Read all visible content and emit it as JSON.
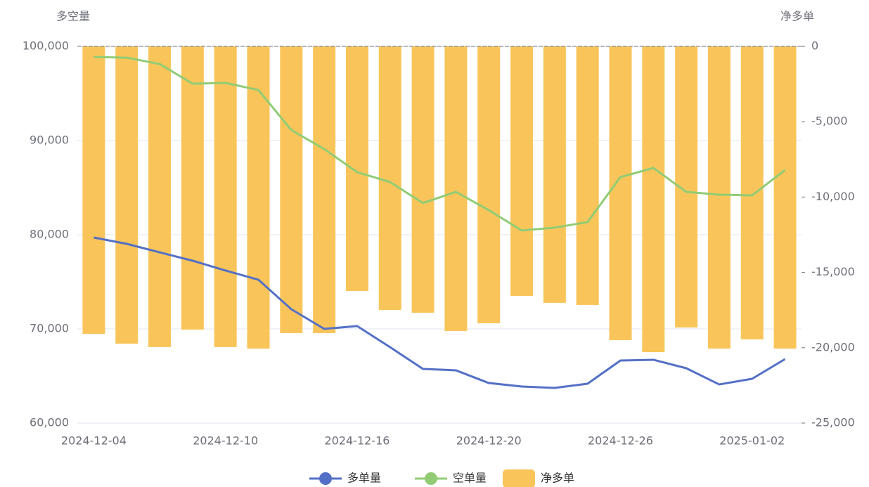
{
  "chart_data": {
    "type": "bar-line",
    "y_title": "多空量",
    "y2_title": "净多单",
    "categories": [
      "2024-12-04",
      null,
      null,
      null,
      "2024-12-10",
      null,
      null,
      null,
      "2024-12-16",
      null,
      null,
      null,
      "2024-12-20",
      null,
      null,
      null,
      "2024-12-26",
      null,
      null,
      null,
      "2025-01-02",
      null
    ],
    "ylim": [
      60000,
      100000
    ],
    "yticks": [
      {
        "value": 60000,
        "label": "60,000"
      },
      {
        "value": 70000,
        "label": "70,000"
      },
      {
        "value": 80000,
        "label": "80,000"
      },
      {
        "value": 90000,
        "label": "90,000"
      },
      {
        "value": 100000,
        "label": "100,000"
      }
    ],
    "y2lim": [
      -25000,
      0
    ],
    "y2ticks": [
      {
        "value": -25000,
        "label": "-25,000"
      },
      {
        "value": -20000,
        "label": "-20,000"
      },
      {
        "value": -15000,
        "label": "-15,000"
      },
      {
        "value": -10000,
        "label": "-10,000"
      },
      {
        "value": -5000,
        "label": "-5,000"
      },
      0
    ],
    "grid": true,
    "series": [
      {
        "name": "多单量",
        "type": "line",
        "color": "#5470c6",
        "values": [
          79700,
          79030,
          78130,
          77240,
          76200,
          75220,
          72090,
          70000,
          70300,
          68060,
          65750,
          65600,
          64250,
          63880,
          63730,
          64180,
          66640,
          66720,
          65820,
          64100,
          64700,
          66790
        ]
      },
      {
        "name": "空单量",
        "type": "line",
        "color": "#91cc75",
        "values": [
          98880,
          98800,
          98130,
          96040,
          96120,
          95370,
          91120,
          89100,
          86640,
          85600,
          83360,
          84550,
          82610,
          80450,
          80750,
          81340,
          86120,
          87090,
          84550,
          84250,
          84180,
          86870
        ]
      },
      {
        "name": "净多单",
        "type": "bar",
        "axis": "y2",
        "color": "#f9c55a",
        "values": [
          -19080,
          -19730,
          -19960,
          -18800,
          -19960,
          -20060,
          -19030,
          -19030,
          -16230,
          -17490,
          -17680,
          -18890,
          -18380,
          -16560,
          -17020,
          -17160,
          -19500,
          -20290,
          -18660,
          -20060,
          -19450,
          -20060
        ]
      }
    ]
  }
}
